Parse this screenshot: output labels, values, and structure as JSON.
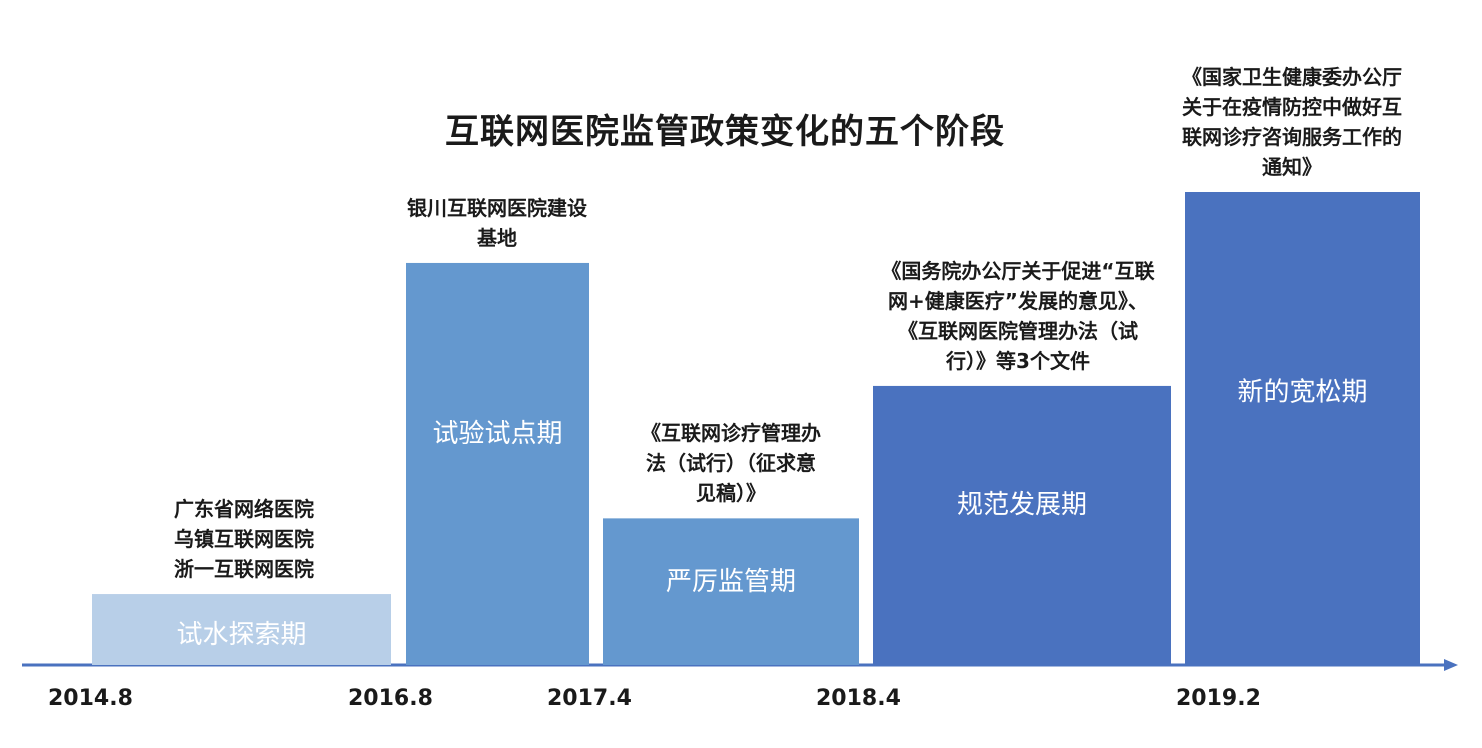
{
  "chart_data": {
    "type": "bar",
    "title": "互联网医院监管政策变化的五个阶段",
    "xlabel": "",
    "ylabel": "",
    "x_tick_labels": [
      "2014.8",
      "2016.8",
      "2017.4",
      "2018.4",
      "2019.2"
    ],
    "stages": [
      {
        "label": "试水探索期",
        "relative_height": 0.15,
        "color": "#b8cfe8",
        "annotation": [
          "广东省网络医院",
          "乌镇互联网医院",
          "浙一互联网医院"
        ]
      },
      {
        "label": "试验试点期",
        "relative_height": 0.85,
        "color": "#6498cf",
        "annotation": [
          "银川互联网医院建设",
          "基地"
        ]
      },
      {
        "label": "严厉监管期",
        "relative_height": 0.31,
        "color": "#6498cf",
        "annotation": [
          "《互联网诊疗管理办",
          "法（试行）（征求意",
          "见稿）》"
        ]
      },
      {
        "label": "规范发展期",
        "relative_height": 0.59,
        "color": "#4a72bf",
        "annotation": [
          "《国务院办公厅关于促进“互联",
          "网+健康医疗”发展的意见》、",
          "《互联网医院管理办法（试",
          "行）》等3个文件"
        ]
      },
      {
        "label": "新的宽松期",
        "relative_height": 1.0,
        "color": "#4a72bf",
        "annotation": [
          "《国家卫生健康委办公厅",
          "关于在疫情防控中做好互",
          "联网诊疗咨询服务工作的",
          "通知》"
        ]
      }
    ],
    "axis_color": "#4a72bf",
    "grid": false,
    "legend": "none"
  }
}
